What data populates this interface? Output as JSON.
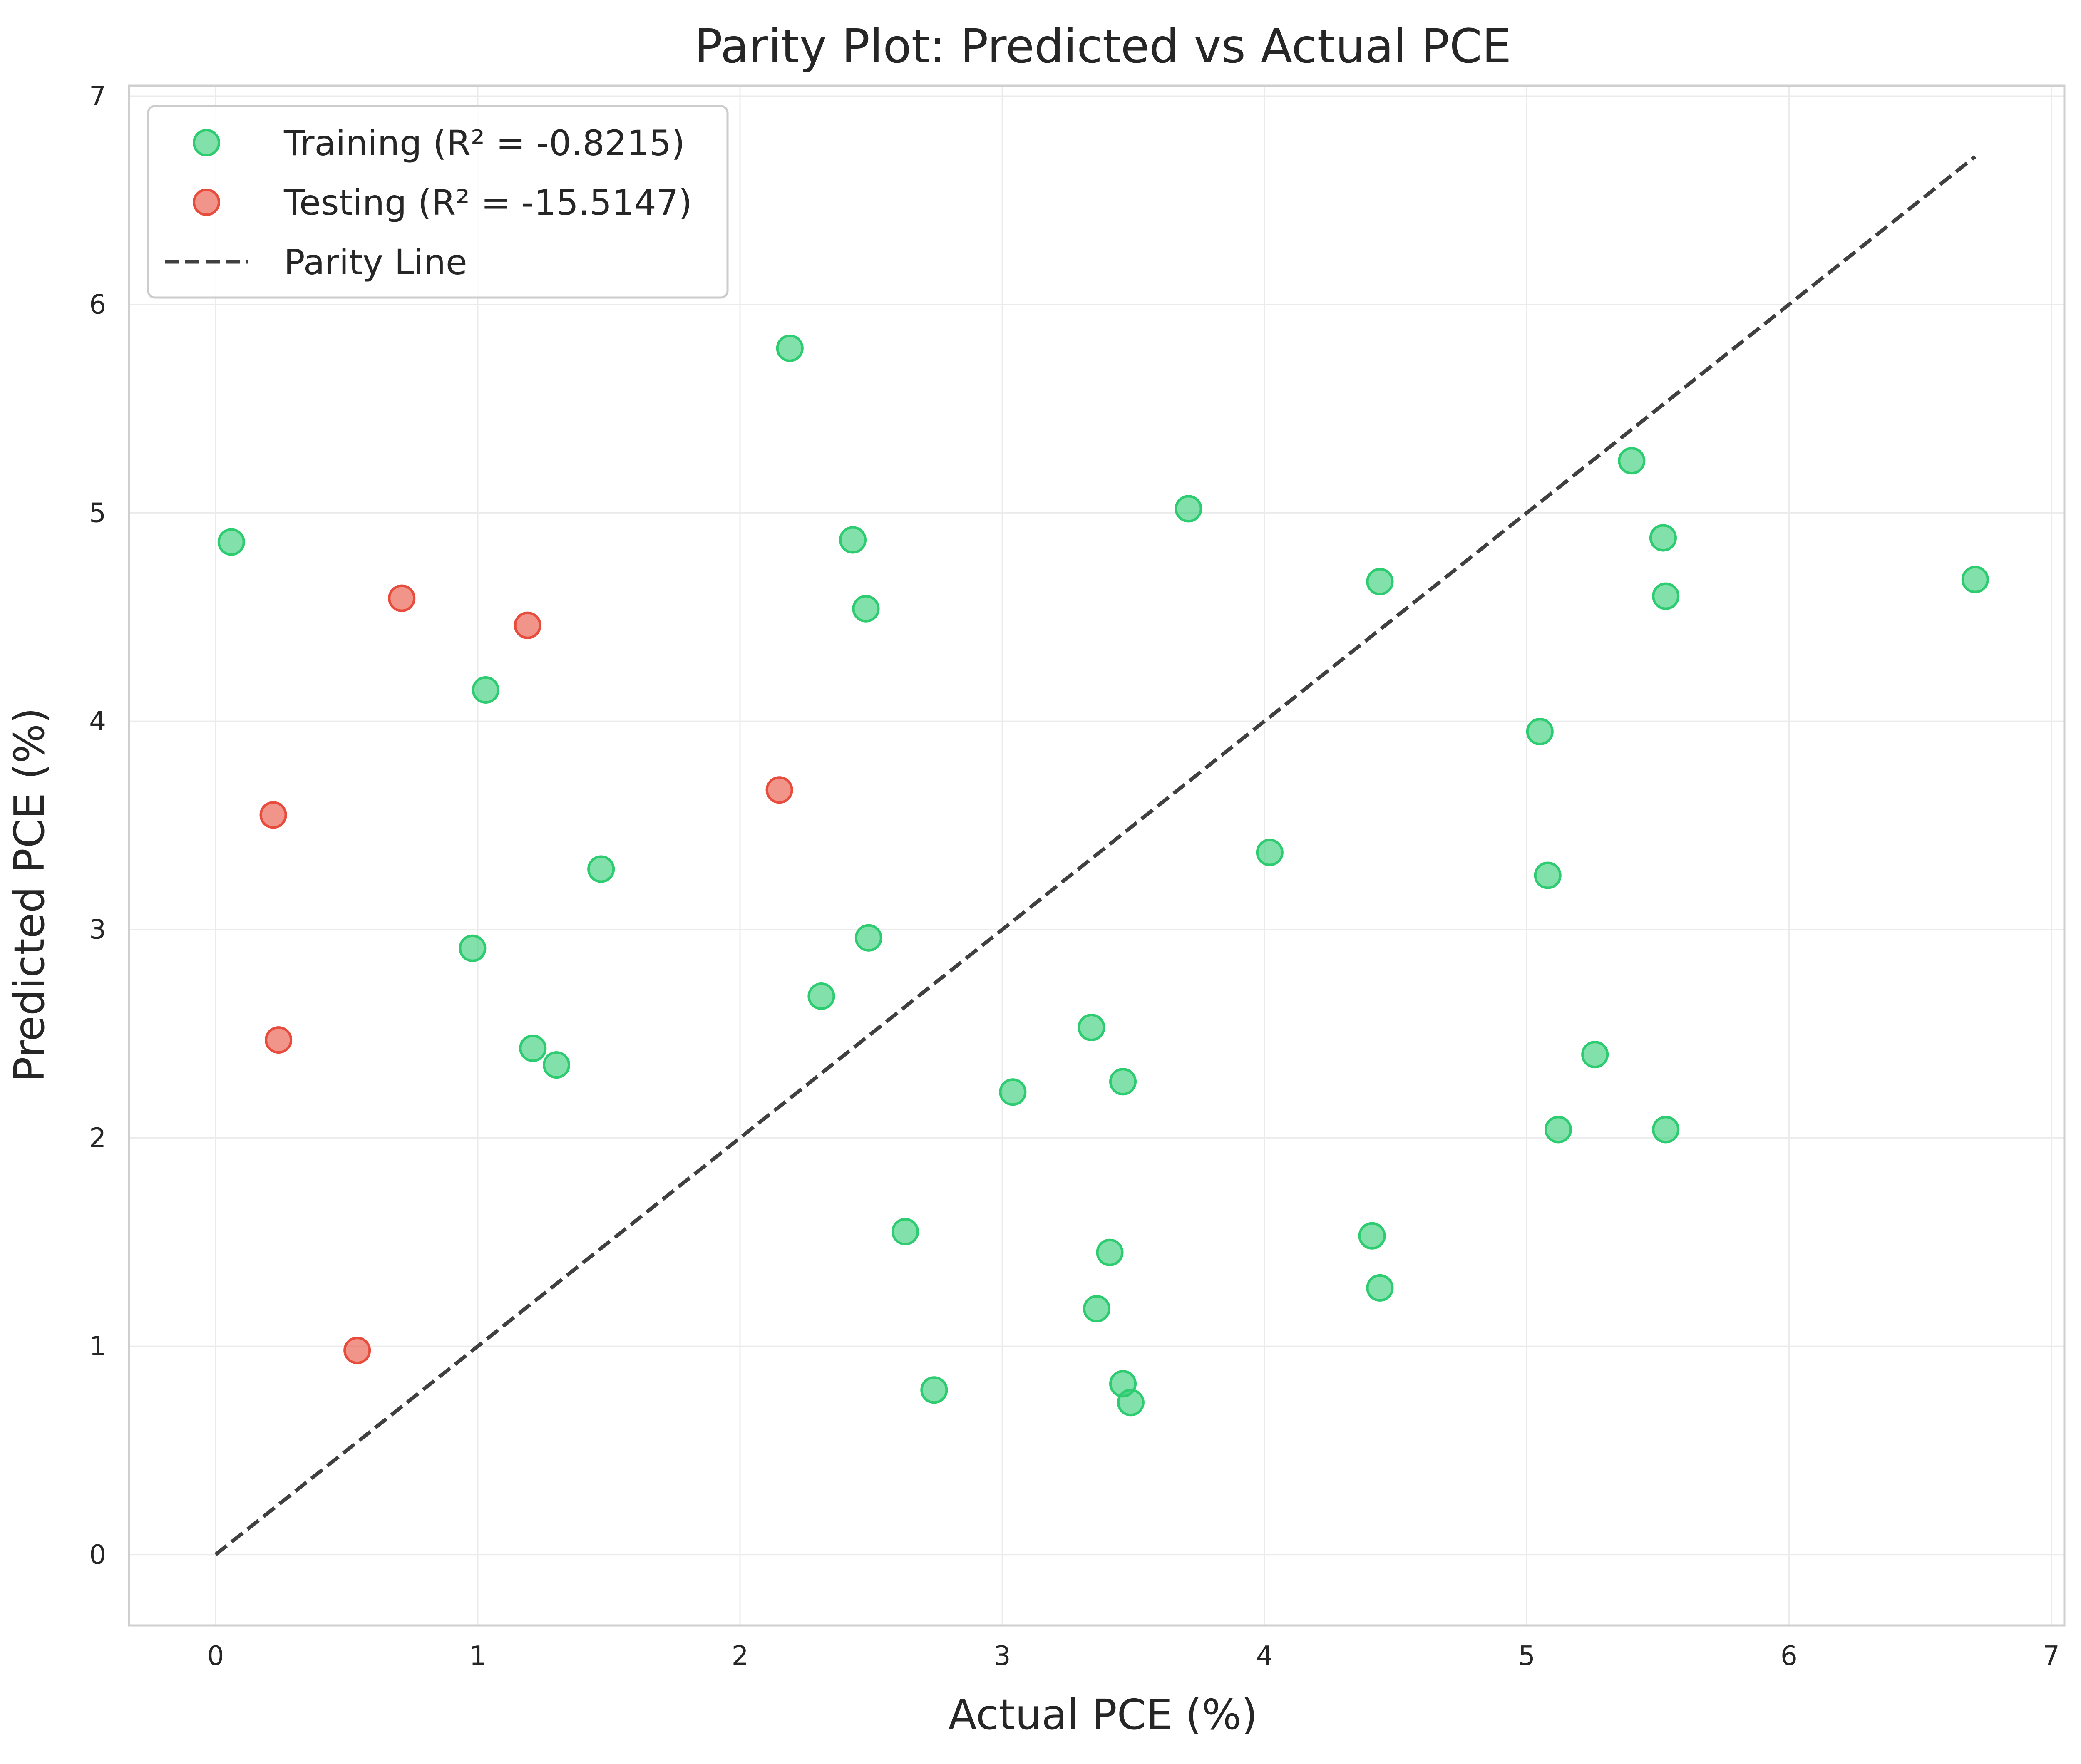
{
  "chart_data": {
    "type": "scatter",
    "title": "Parity Plot: Predicted vs Actual PCE",
    "xlabel": "Actual PCE (%)",
    "ylabel": "Predicted PCE (%)",
    "xlim": [
      -0.33,
      7.05
    ],
    "ylim": [
      -0.34,
      7.05
    ],
    "xticks": [
      "0",
      "1",
      "2",
      "3",
      "4",
      "5",
      "6",
      "7"
    ],
    "yticks": [
      "0",
      "1",
      "2",
      "3",
      "4",
      "5",
      "6",
      "7"
    ],
    "grid": true,
    "legend_position": "top-left",
    "series": [
      {
        "name": "Training (R² = -0.8215)",
        "kind": "scatter",
        "color": "#2ecc71",
        "points": [
          [
            0.06,
            4.86
          ],
          [
            1.03,
            4.15
          ],
          [
            0.98,
            2.91
          ],
          [
            1.21,
            2.43
          ],
          [
            1.3,
            2.35
          ],
          [
            1.47,
            3.29
          ],
          [
            2.19,
            5.79
          ],
          [
            2.43,
            4.87
          ],
          [
            2.48,
            4.54
          ],
          [
            2.49,
            2.96
          ],
          [
            2.31,
            2.68
          ],
          [
            2.63,
            1.55
          ],
          [
            2.74,
            0.79
          ],
          [
            3.04,
            2.22
          ],
          [
            3.34,
            2.53
          ],
          [
            3.46,
            2.27
          ],
          [
            3.41,
            1.45
          ],
          [
            3.36,
            1.18
          ],
          [
            3.46,
            0.82
          ],
          [
            3.49,
            0.73
          ],
          [
            3.71,
            5.02
          ],
          [
            4.02,
            3.37
          ],
          [
            4.44,
            4.67
          ],
          [
            4.41,
            1.53
          ],
          [
            4.44,
            1.28
          ],
          [
            5.05,
            3.95
          ],
          [
            5.08,
            3.26
          ],
          [
            5.12,
            2.04
          ],
          [
            5.26,
            2.4
          ],
          [
            5.4,
            5.25
          ],
          [
            5.52,
            4.88
          ],
          [
            5.53,
            4.6
          ],
          [
            5.53,
            2.04
          ],
          [
            6.71,
            4.68
          ]
        ]
      },
      {
        "name": "Testing (R² = -15.5147)",
        "kind": "scatter",
        "color": "#e74c3c",
        "points": [
          [
            0.22,
            3.55
          ],
          [
            0.24,
            2.47
          ],
          [
            0.54,
            0.98
          ],
          [
            0.71,
            4.59
          ],
          [
            1.19,
            4.46
          ],
          [
            2.15,
            3.67
          ]
        ]
      },
      {
        "name": "Parity Line",
        "kind": "line",
        "style": "dashed",
        "color": "#404040",
        "points": [
          [
            0,
            0
          ],
          [
            6.71,
            6.71
          ]
        ]
      }
    ]
  }
}
